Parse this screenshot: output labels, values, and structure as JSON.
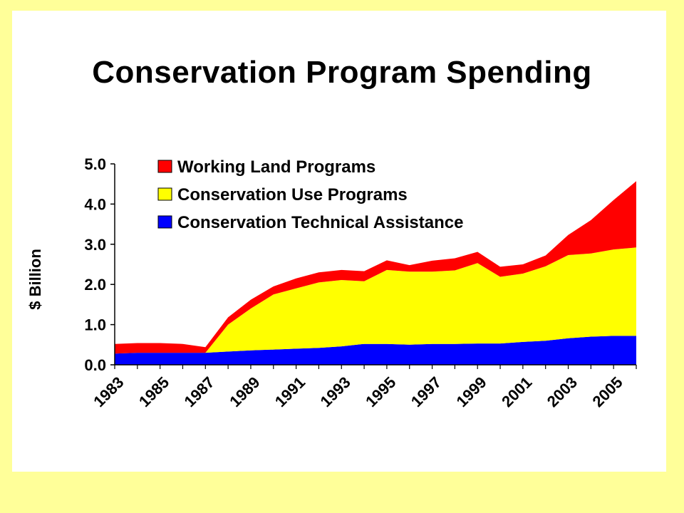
{
  "title": "Conservation Program Spending",
  "colors": {
    "page_background": "#ffff99",
    "slide_background": "#ffffff",
    "working_land": "#ff0000",
    "conservation_use": "#ffff00",
    "technical_assistance": "#0000ff"
  },
  "chart_data": {
    "type": "area",
    "stacked": true,
    "title": "Conservation Program Spending",
    "xlabel": "",
    "ylabel": "$ Billion",
    "ylim": [
      0,
      5
    ],
    "yticks": [
      "0.0",
      "1.0",
      "2.0",
      "3.0",
      "4.0",
      "5.0"
    ],
    "x": [
      1983,
      1984,
      1985,
      1986,
      1987,
      1988,
      1989,
      1990,
      1991,
      1992,
      1993,
      1994,
      1995,
      1996,
      1997,
      1998,
      1999,
      2000,
      2001,
      2002,
      2003,
      2004,
      2005,
      2006
    ],
    "xtick_labels": [
      "1983",
      "1985",
      "1987",
      "1989",
      "1991",
      "1993",
      "1995",
      "1997",
      "1999",
      "2001",
      "2003",
      "2005"
    ],
    "grid": false,
    "legend_position": "top-left",
    "series": [
      {
        "name": "Conservation Technical Assistance",
        "color": "#0000ff",
        "values": [
          0.28,
          0.3,
          0.3,
          0.3,
          0.3,
          0.33,
          0.36,
          0.38,
          0.4,
          0.42,
          0.46,
          0.52,
          0.52,
          0.5,
          0.52,
          0.52,
          0.53,
          0.53,
          0.57,
          0.6,
          0.66,
          0.7,
          0.72,
          0.72
        ]
      },
      {
        "name": "Conservation Use Programs",
        "color": "#ffff00",
        "values": [
          0.0,
          0.0,
          0.0,
          0.0,
          0.0,
          0.67,
          1.04,
          1.37,
          1.5,
          1.63,
          1.65,
          1.56,
          1.84,
          1.82,
          1.8,
          1.83,
          2.0,
          1.66,
          1.7,
          1.85,
          2.07,
          2.07,
          2.15,
          2.2
        ]
      },
      {
        "name": "Working Land Programs",
        "color": "#ff0000",
        "values": [
          0.24,
          0.24,
          0.24,
          0.22,
          0.14,
          0.18,
          0.22,
          0.2,
          0.25,
          0.25,
          0.25,
          0.25,
          0.24,
          0.16,
          0.27,
          0.3,
          0.28,
          0.25,
          0.23,
          0.27,
          0.5,
          0.83,
          1.23,
          1.65
        ]
      }
    ]
  }
}
